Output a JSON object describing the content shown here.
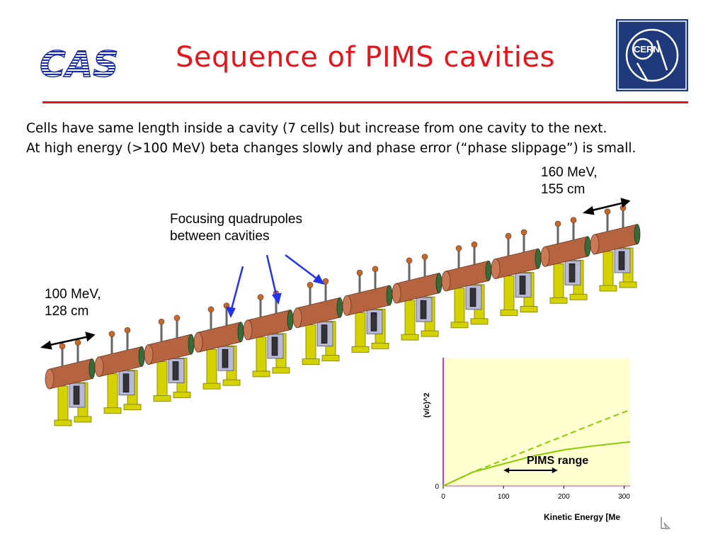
{
  "header": {
    "logo_text": "CAS",
    "title": "Sequence of PIMS cavities",
    "cern_logo_text": "CERN",
    "accent_color": "#e8141c",
    "cern_blue": "#1f3a7a"
  },
  "body": {
    "line1": "Cells have same length inside a cavity (7 cells) but increase from one cavity to the next.",
    "line2": "At high energy (>100 MeV) beta changes slowly and phase error (“phase slippage”) is small."
  },
  "annotations": {
    "high_energy_line1": "160 MeV,",
    "high_energy_line2": "155 cm",
    "quad_line1": "Focusing quadrupoles",
    "quad_line2": "between cavities",
    "low_energy_line1": "100 MeV,",
    "low_energy_line2": "128 cm"
  },
  "beamline": {
    "cavity_count": 12,
    "cavity_color": "#b5643f",
    "support_color": "#d4d200",
    "arrow_color": "#2233ee"
  },
  "chart_data": {
    "type": "line",
    "ylabel": "(v/c)^2",
    "xlabel": "Kinetic Energy [Me",
    "x_ticks": [
      "0",
      "100",
      "200",
      "300"
    ],
    "y_ticks": [
      "0"
    ],
    "xlim": [
      0,
      310
    ],
    "ylim": [
      0,
      0.32
    ],
    "annotation": "PIMS range",
    "range": [
      100,
      190
    ],
    "series": [
      {
        "x": [
          0,
          50,
          100,
          150,
          200,
          250,
          310
        ],
        "y": [
          0,
          0.035,
          0.065,
          0.095,
          0.125,
          0.155,
          0.19
        ],
        "style": "dashed"
      },
      {
        "x": [
          0,
          50,
          100,
          150,
          200,
          250,
          310
        ],
        "y": [
          0,
          0.035,
          0.055,
          0.075,
          0.09,
          0.1,
          0.11
        ],
        "style": "solid"
      }
    ],
    "background": "#ffffd0",
    "line_color": "#88cc00"
  }
}
